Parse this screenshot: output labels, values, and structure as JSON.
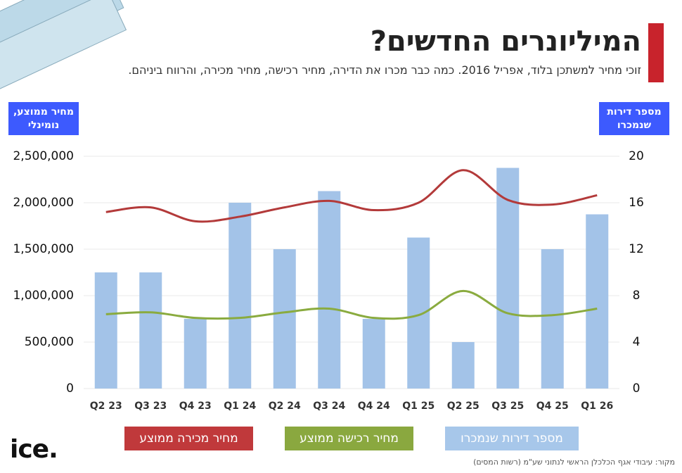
{
  "chart_data": {
    "type": "bar-line",
    "title": "המיליונרים החדשים?",
    "subtitle": "זוכי מחיר למשתכן בלוד, אפריל 2016. כמה כבר מכרו את הדירה, מחיר רכישה, מחיר מכירה, והרווח ביניהם.",
    "ylabel": "מחיר ממוצע, נומינלי",
    "y2label": "מספר דירות שנמכרו",
    "categories": [
      "Q2 23",
      "Q3 23",
      "Q4 23",
      "Q1 24",
      "Q2 24",
      "Q3 24",
      "Q4 24",
      "Q1 25",
      "Q2 25",
      "Q3 25",
      "Q4 25",
      "Q1 26"
    ],
    "series": [
      {
        "name": "מספר דירות שנמכרו",
        "type": "bar",
        "axis": "y2",
        "color": "#a3c3e8",
        "legend_color": "#a7c7ea",
        "values": [
          10,
          10,
          6,
          16,
          12,
          17,
          6,
          13,
          4,
          19,
          12,
          15
        ]
      },
      {
        "name": "מחיר רכישה ממוצע",
        "type": "line",
        "color": "#8aab3f",
        "legend_color": "#8aa83f",
        "values": [
          800000,
          820000,
          760000,
          760000,
          820000,
          860000,
          760000,
          790000,
          1050000,
          810000,
          790000,
          860000
        ]
      },
      {
        "name": "מחיר מכירה ממוצע",
        "type": "line",
        "color": "#b33a3a",
        "legend_color": "#c0393b",
        "values": [
          1900000,
          1950000,
          1800000,
          1850000,
          1950000,
          2020000,
          1920000,
          2000000,
          2350000,
          2030000,
          1980000,
          2080000
        ]
      }
    ],
    "ylim": [
      0,
      2500000
    ],
    "yticks": [
      0,
      {
        "value": 500000,
        "label": "500,000"
      },
      {
        "value": 1000000,
        "label": "1,000,000"
      },
      {
        "value": 1500000,
        "label": "1,500,000"
      },
      {
        "value": 2000000,
        "label": "2,000,000"
      },
      {
        "value": 2500000,
        "label": "2,500,000"
      }
    ],
    "y2lim": [
      0,
      20
    ],
    "y2ticks": [
      0,
      4,
      8,
      12,
      16,
      20
    ],
    "grid": true
  },
  "footer": {
    "source": "מקור: עיבודי אגף הכלכלן הראשי לנתוני שע\"מ (רשות המסים)",
    "logo": "ice."
  }
}
